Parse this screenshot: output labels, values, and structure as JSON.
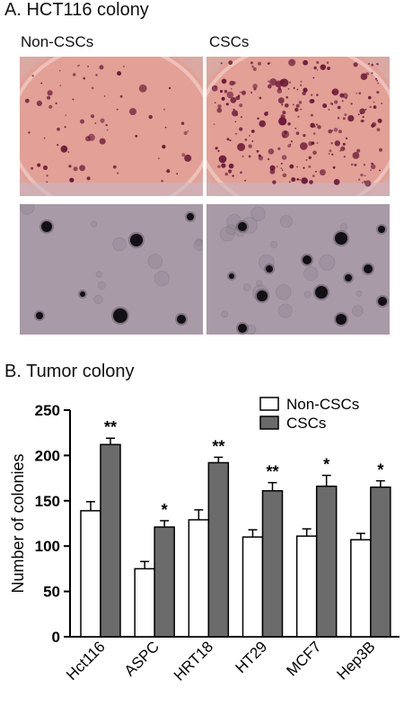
{
  "panel_a": {
    "title": "A. HCT116 colony",
    "col_labels": [
      "Non-CSCs",
      "CSCs"
    ]
  },
  "panel_b": {
    "title": "B. Tumor colony"
  },
  "colors": {
    "non_cscs": "#ffffff",
    "cscs": "#6b6b6b",
    "dish_bg": "#e2a096",
    "micro_bg": "#a99aa8"
  },
  "chart_data": {
    "type": "bar",
    "categories": [
      "Hct116",
      "ASPC",
      "HRT18",
      "HT29",
      "MCF7",
      "Hep3B"
    ],
    "series": [
      {
        "name": "Non-CSCs",
        "values": [
          139,
          75,
          129,
          110,
          111,
          107
        ],
        "errors": [
          10,
          8,
          11,
          8,
          8,
          7
        ]
      },
      {
        "name": "CSCs",
        "values": [
          212,
          121,
          192,
          161,
          166,
          165
        ],
        "errors": [
          7,
          7,
          6,
          9,
          12,
          7
        ]
      }
    ],
    "significance": [
      "**",
      "*",
      "**",
      "**",
      "*",
      "*"
    ],
    "ylabel": "Number of colonies",
    "yticks": [
      0,
      50,
      100,
      150,
      200,
      250
    ],
    "ylim": [
      0,
      250
    ],
    "legend": "top-right"
  }
}
